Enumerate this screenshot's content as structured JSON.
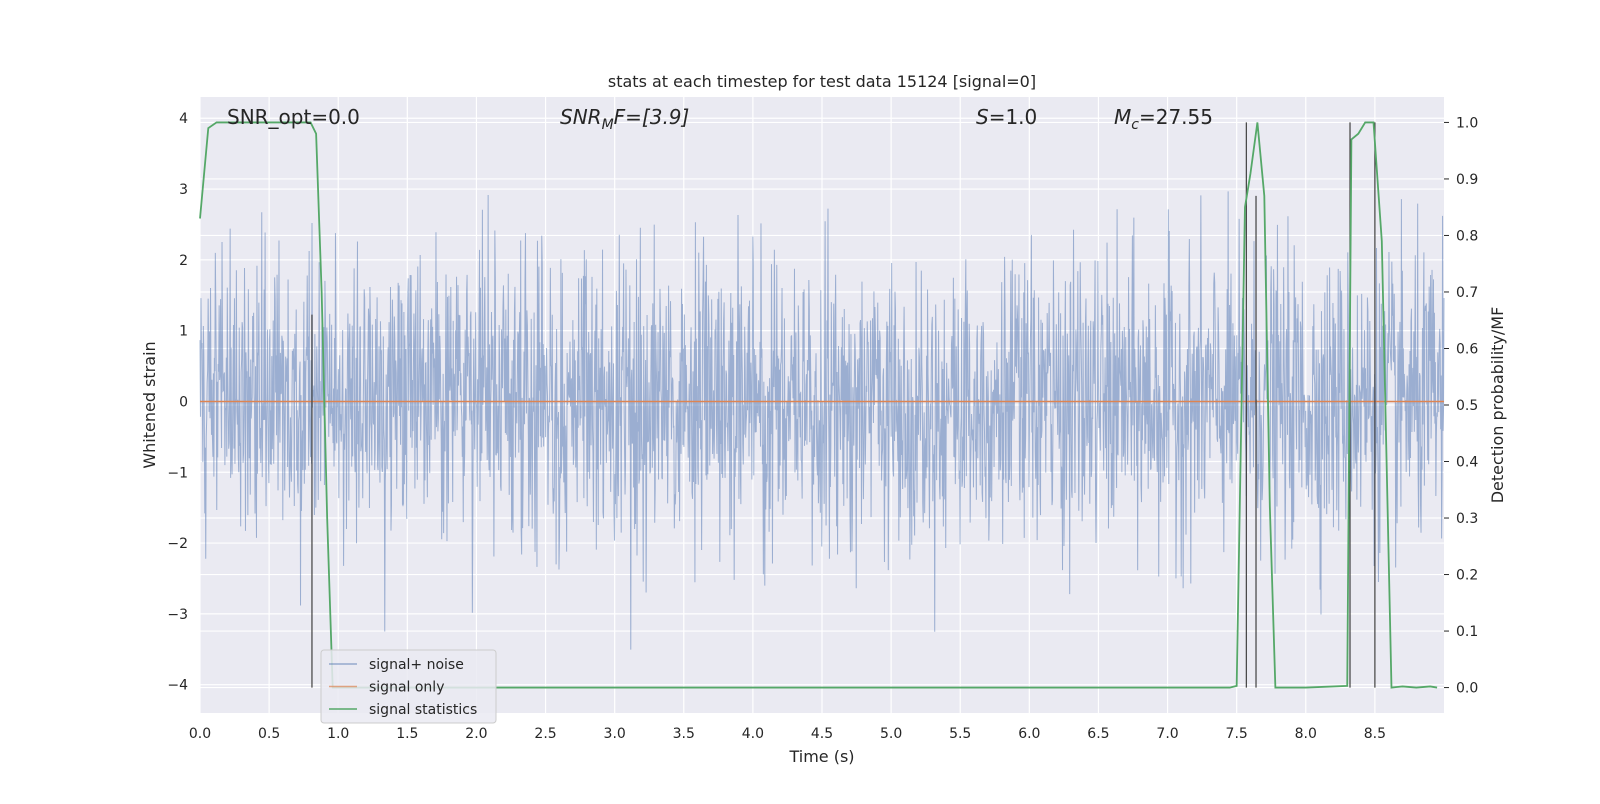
{
  "chart_data": {
    "type": "line",
    "title": "stats at each timestep for test data 15124 [signal=0]",
    "xlabel": "Time (s)",
    "ylabel_left": "Whitened strain",
    "ylabel_right": "Detection probability/MF",
    "xlim": [
      0.0,
      9.0
    ],
    "ylim_left": [
      -4.4,
      4.3
    ],
    "ylim_right": [
      -0.045,
      1.045
    ],
    "xticks": [
      "0.0",
      "0.5",
      "1.0",
      "1.5",
      "2.0",
      "2.5",
      "3.0",
      "3.5",
      "4.0",
      "4.5",
      "5.0",
      "5.5",
      "6.0",
      "6.5",
      "7.0",
      "7.5",
      "8.0",
      "8.5"
    ],
    "yticks_left": [
      "4",
      "3",
      "2",
      "1",
      "0",
      "−1",
      "−2",
      "−3",
      "−4"
    ],
    "yticks_right": [
      "1.0",
      "0.9",
      "0.8",
      "0.7",
      "0.6",
      "0.5",
      "0.4",
      "0.3",
      "0.2",
      "0.1",
      "0.0"
    ],
    "grid": true,
    "annotations": {
      "snr_opt": "SNR_opt=0.0",
      "snr_mf_base": "SNR",
      "snr_mf_sub": "M",
      "snr_mf_rest": "F=[3.9]",
      "s_base": "S",
      "s_rest": "=1.0",
      "mc_base": "M",
      "mc_sub": "c",
      "mc_rest": "=27.55"
    },
    "legend": {
      "placement": "lower-left",
      "entries": [
        "signal+ noise",
        "signal only",
        "signal statistics"
      ]
    },
    "colors": {
      "signal_noise": "#4c72b0",
      "signal_only": "#dd8452",
      "signal_statistics": "#55a868",
      "vlines": "#404040",
      "background": "#eaeaf2"
    },
    "series": [
      {
        "name": "signal+ noise",
        "axis": "left",
        "description_values": "whitened strain noise, approx. Gaussian, sigma ~1, extremes ~±3.7",
        "amplitude_sigma": 1.0
      },
      {
        "name": "signal only",
        "axis": "left",
        "x": [
          0.0,
          9.0
        ],
        "y": [
          0.0,
          0.0
        ]
      },
      {
        "name": "signal statistics",
        "axis": "right",
        "x": [
          0.0,
          0.06,
          0.12,
          0.2,
          0.3,
          0.45,
          0.6,
          0.75,
          0.8,
          0.84,
          0.88,
          0.92,
          0.96,
          1.0,
          1.2,
          2.0,
          3.0,
          4.0,
          5.0,
          6.0,
          7.0,
          7.45,
          7.5,
          7.56,
          7.6,
          7.65,
          7.7,
          7.74,
          7.78,
          7.85,
          8.0,
          8.3,
          8.33,
          8.38,
          8.43,
          8.49,
          8.55,
          8.62,
          8.7,
          8.8,
          8.9,
          8.95
        ],
        "y": [
          0.83,
          0.99,
          1.0,
          1.0,
          1.0,
          1.0,
          1.0,
          1.0,
          1.0,
          0.98,
          0.7,
          0.3,
          0.0,
          0.0,
          0.0,
          0.0,
          0.0,
          0.0,
          0.0,
          0.0,
          0.0,
          0.0,
          0.003,
          0.85,
          0.91,
          1.0,
          0.87,
          0.32,
          0.0,
          0.0,
          0.0,
          0.003,
          0.97,
          0.98,
          1.0,
          1.0,
          0.79,
          0.0,
          0.002,
          0.0,
          0.002,
          0.0
        ]
      }
    ],
    "vertical_lines": [
      {
        "x": 0.81,
        "y_bottom": 0.0,
        "y_top": 0.66
      },
      {
        "x": 7.57,
        "y_bottom": 0.0,
        "y_top": 1.0
      },
      {
        "x": 7.64,
        "y_bottom": 0.0,
        "y_top": 0.87
      },
      {
        "x": 8.32,
        "y_bottom": 0.0,
        "y_top": 1.0
      },
      {
        "x": 8.5,
        "y_bottom": 0.0,
        "y_top": 1.0
      }
    ]
  }
}
